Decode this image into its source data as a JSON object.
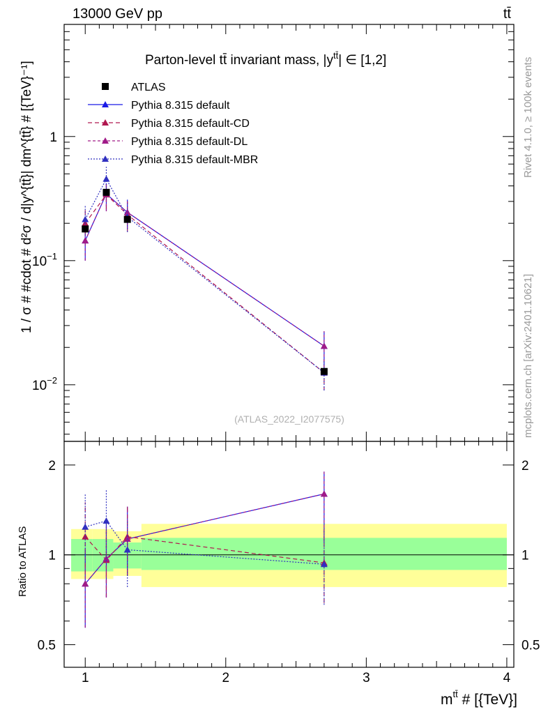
{
  "header": {
    "energy_label": "13000 GeV pp",
    "process_label": "tt̄"
  },
  "side_labels": {
    "rivet": "Rivet 4.1.0, ≥ 100k events",
    "site": "mcplots.cern.ch [arXiv:2401.10621]"
  },
  "chart_data": {
    "type": "line",
    "title": "Parton-level tt̄ invariant mass, |y^{tt̄}| ∈ [1,2]",
    "title_text": "Parton-level tt̄ invariant mass, |y",
    "title_sup": "tt̄",
    "title_tail": "| ∈ [1,2]",
    "analysis_id": "(ATLAS_2022_I2077575)",
    "xlabel": "m",
    "xlabel_sup": "tt̄",
    "xlabel_tail": " # [{TeV}]",
    "ylabel": "1 / σ # #cdot # d²σ / d|y^{tt̄}| dm^{tt̄} # [{TeV}⁻¹]",
    "ylabel_ratio": "Ratio to ATLAS",
    "xlim": [
      0.85,
      4.05
    ],
    "ylim": [
      0.0035,
      8.0
    ],
    "ylog": true,
    "ratio_ylim": [
      0.42,
      2.4
    ],
    "ratio_ylog": true,
    "x_ticks": [
      1,
      2,
      3,
      4
    ],
    "x_tick_labels": [
      "1",
      "2",
      "3",
      "4"
    ],
    "y_ticks": [
      0.01,
      0.1,
      1
    ],
    "y_tick_labels": {
      "mantissa": [
        "10",
        "10",
        "1"
      ],
      "exponent": [
        "−2",
        "−1",
        ""
      ]
    },
    "ratio_ticks": [
      0.5,
      1,
      2
    ],
    "ratio_tick_labels": [
      "0.5",
      "1",
      "2"
    ],
    "bins": [
      [
        0.9,
        1.05
      ],
      [
        1.05,
        1.2
      ],
      [
        1.2,
        1.4
      ],
      [
        1.4,
        4.0
      ]
    ],
    "x": [
      1.0,
      1.15,
      1.3,
      2.7
    ],
    "data": {
      "name": "ATLAS",
      "values": [
        0.18,
        0.355,
        0.215,
        0.0128
      ],
      "band_inner": [
        [
          0.88,
          1.13
        ],
        [
          0.88,
          1.13
        ],
        [
          0.9,
          1.1
        ],
        [
          0.89,
          1.14
        ]
      ],
      "band_outer": [
        [
          0.83,
          1.22
        ],
        [
          0.83,
          1.22
        ],
        [
          0.85,
          1.2
        ],
        [
          0.78,
          1.27
        ]
      ]
    },
    "series": [
      {
        "name": "Pythia 8.315 default",
        "color": "#1a1ae6",
        "dash": "solid",
        "values": [
          0.145,
          0.345,
          0.245,
          0.0205
        ],
        "err": [
          [
            0.1,
            0.195
          ],
          [
            0.25,
            0.42
          ],
          [
            0.18,
            0.31
          ],
          [
            0.014,
            0.027
          ]
        ],
        "ratio": [
          0.8,
          0.97,
          1.13,
          1.6
        ],
        "ratio_err": [
          [
            0.57,
            1.05
          ],
          [
            0.72,
            1.3
          ],
          [
            0.85,
            1.45
          ],
          [
            1.1,
            1.9
          ]
        ]
      },
      {
        "name": "Pythia 8.315 default-CD",
        "color": "#b0174f",
        "dash": "6,4",
        "values": [
          0.2,
          0.34,
          0.235,
          0.0125
        ],
        "err": [
          [
            0.14,
            0.26
          ],
          [
            0.26,
            0.42
          ],
          [
            0.17,
            0.3
          ],
          [
            0.009,
            0.016
          ]
        ],
        "ratio": [
          1.15,
          0.96,
          1.15,
          0.94
        ],
        "ratio_err": [
          [
            0.86,
            1.5
          ],
          [
            0.72,
            1.22
          ],
          [
            0.86,
            1.45
          ],
          [
            0.69,
            1.24
          ]
        ]
      },
      {
        "name": "Pythia 8.315 default-DL",
        "color": "#a01a88",
        "dash": "4,3",
        "values": [
          0.145,
          0.345,
          0.245,
          0.0205
        ],
        "err": [
          [
            0.1,
            0.195
          ],
          [
            0.25,
            0.42
          ],
          [
            0.18,
            0.31
          ],
          [
            0.014,
            0.027
          ]
        ],
        "ratio": [
          0.8,
          0.97,
          1.13,
          1.6
        ],
        "ratio_err": [
          [
            0.57,
            1.05
          ],
          [
            0.72,
            1.3
          ],
          [
            0.85,
            1.45
          ],
          [
            1.1,
            1.9
          ]
        ]
      },
      {
        "name": "Pythia 8.315 default-MBR",
        "color": "#3030c0",
        "dash": "2,2",
        "values": [
          0.215,
          0.455,
          0.225,
          0.0125
        ],
        "err": [
          [
            0.16,
            0.28
          ],
          [
            0.35,
            0.57
          ],
          [
            0.17,
            0.29
          ],
          [
            0.009,
            0.016
          ]
        ],
        "ratio": [
          1.24,
          1.3,
          1.04,
          0.93
        ],
        "ratio_err": [
          [
            0.94,
            1.6
          ],
          [
            0.95,
            1.65
          ],
          [
            0.78,
            1.3
          ],
          [
            0.68,
            1.22
          ]
        ]
      }
    ]
  }
}
